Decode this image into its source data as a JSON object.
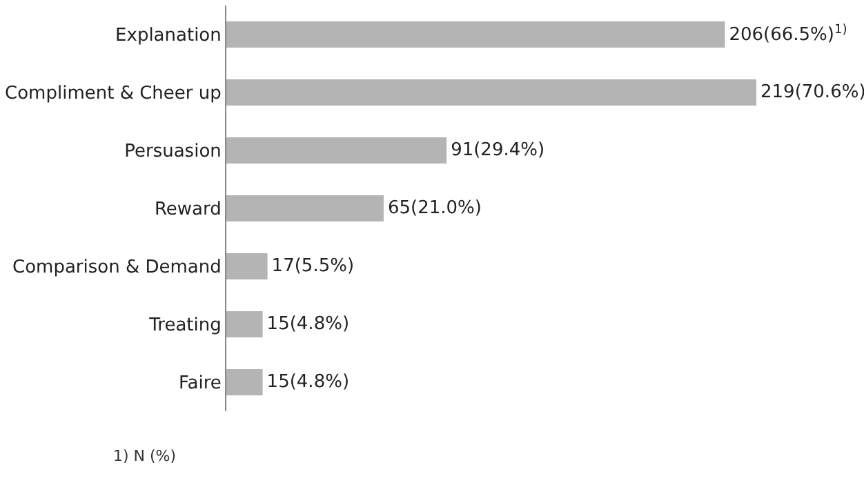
{
  "chart_data": {
    "type": "bar",
    "orientation": "horizontal",
    "categories": [
      "Explanation",
      "Compliment & Cheer up",
      "Persuasion",
      "Reward",
      "Comparison & Demand",
      "Treating",
      "Faire"
    ],
    "values": [
      206,
      219,
      91,
      65,
      17,
      15,
      15
    ],
    "value_labels": [
      "206(66.5%)$^{1)}$",
      "219(70.6%)",
      "91(29.4%)",
      "65(21.0%)",
      "17(5.5%)",
      "15(4.8%)",
      "15(4.8%)"
    ],
    "color": "#b4b4b4",
    "xlim": [
      0,
      219
    ],
    "tick_labels": "y",
    "annotations": [
      "1) N (%)"
    ]
  }
}
